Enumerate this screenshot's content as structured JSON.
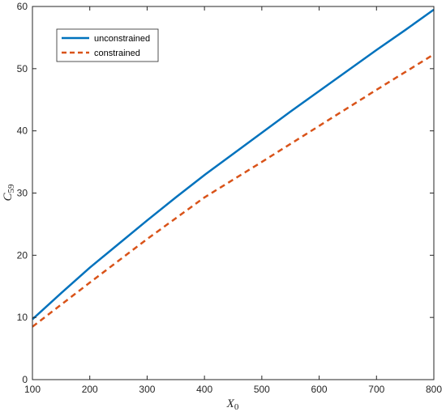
{
  "chart_data": {
    "type": "line",
    "xlabel": {
      "main": "X",
      "sub": "0"
    },
    "ylabel": {
      "main": "C",
      "sub": "59"
    },
    "xlim": [
      100,
      800
    ],
    "ylim": [
      0,
      60
    ],
    "xticks": [
      100,
      200,
      300,
      400,
      500,
      600,
      700,
      800
    ],
    "yticks": [
      0,
      10,
      20,
      30,
      40,
      50,
      60
    ],
    "grid": false,
    "legend_position": "top-left",
    "series": [
      {
        "name": "unconstrained",
        "style": "solid",
        "color": "#0072BD",
        "x": [
          100,
          150,
          200,
          250,
          300,
          350,
          400,
          450,
          500,
          550,
          600,
          650,
          700,
          750,
          800
        ],
        "y": [
          9.7,
          13.9,
          18.0,
          21.8,
          25.6,
          29.3,
          32.9,
          36.3,
          39.7,
          43.1,
          46.4,
          49.7,
          53.0,
          56.2,
          59.5
        ]
      },
      {
        "name": "constrained",
        "style": "dashed",
        "color": "#D95319",
        "x": [
          100,
          200,
          300,
          400,
          500,
          600,
          700,
          800
        ],
        "y": [
          8.5,
          15.6,
          22.6,
          29.3,
          35.0,
          40.8,
          46.6,
          52.3
        ]
      }
    ]
  }
}
